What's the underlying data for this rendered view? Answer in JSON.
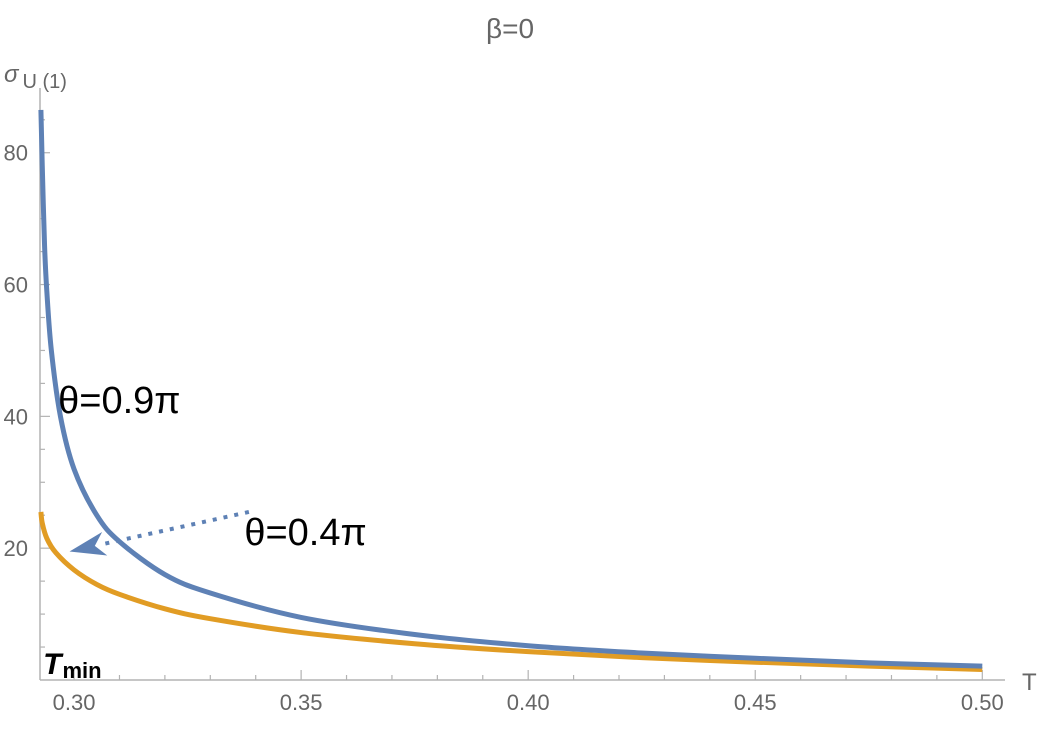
{
  "chart_data": {
    "type": "line",
    "title": "β=0",
    "xlabel": "T",
    "ylabel": "σ",
    "ylabel_sub": "U (1)",
    "xlim": [
      0.2925,
      0.505
    ],
    "ylim": [
      0,
      88
    ],
    "x_ticks": [
      {
        "value": 0.3,
        "label": "0.30"
      },
      {
        "value": 0.35,
        "label": "0.35"
      },
      {
        "value": 0.4,
        "label": "0.40"
      },
      {
        "value": 0.45,
        "label": "0.45"
      },
      {
        "value": 0.5,
        "label": "0.50"
      }
    ],
    "y_ticks": [
      {
        "value": 20,
        "label": "20"
      },
      {
        "value": 40,
        "label": "40"
      },
      {
        "value": 60,
        "label": "60"
      },
      {
        "value": 80,
        "label": "80"
      }
    ],
    "x_minor_step": 0.01,
    "y_minor_step": 5,
    "grid": false,
    "series": [
      {
        "name": "θ=0.9π",
        "color": "#5e81b5",
        "x": [
          0.2927,
          0.293,
          0.2935,
          0.294,
          0.295,
          0.297,
          0.3,
          0.305,
          0.31,
          0.32,
          0.33,
          0.35,
          0.375,
          0.4,
          0.425,
          0.45,
          0.475,
          0.5
        ],
        "y": [
          86.5,
          78,
          66,
          59,
          50,
          40,
          32,
          25,
          21,
          16,
          13.2,
          9.5,
          6.9,
          5.2,
          4.1,
          3.3,
          2.6,
          2.1
        ]
      },
      {
        "name": "θ=0.4π",
        "color": "#e19c24",
        "x": [
          0.2927,
          0.293,
          0.294,
          0.296,
          0.3,
          0.305,
          0.31,
          0.32,
          0.33,
          0.35,
          0.375,
          0.4,
          0.425,
          0.45,
          0.475,
          0.5
        ],
        "y": [
          25.5,
          23.8,
          21.5,
          19.3,
          16.7,
          14.5,
          13.0,
          10.8,
          9.3,
          7.2,
          5.5,
          4.3,
          3.4,
          2.7,
          2.1,
          1.6
        ]
      }
    ],
    "annotations": [
      {
        "name": "annotation-theta-09",
        "text": "θ=0.9π",
        "x": 0.2965,
        "y": 40.5
      },
      {
        "name": "annotation-theta-04",
        "text": "θ=0.4π",
        "x": 0.3375,
        "y": 20.5
      },
      {
        "name": "annotation-tmin",
        "text": "T",
        "sub": "min",
        "x": 0.2932,
        "y": 0.6
      }
    ],
    "arrow": {
      "from_x": 0.3385,
      "from_y": 25.5,
      "to_x": 0.299,
      "to_y": 19.5,
      "color": "#5e81b5",
      "style": "dotted"
    }
  }
}
